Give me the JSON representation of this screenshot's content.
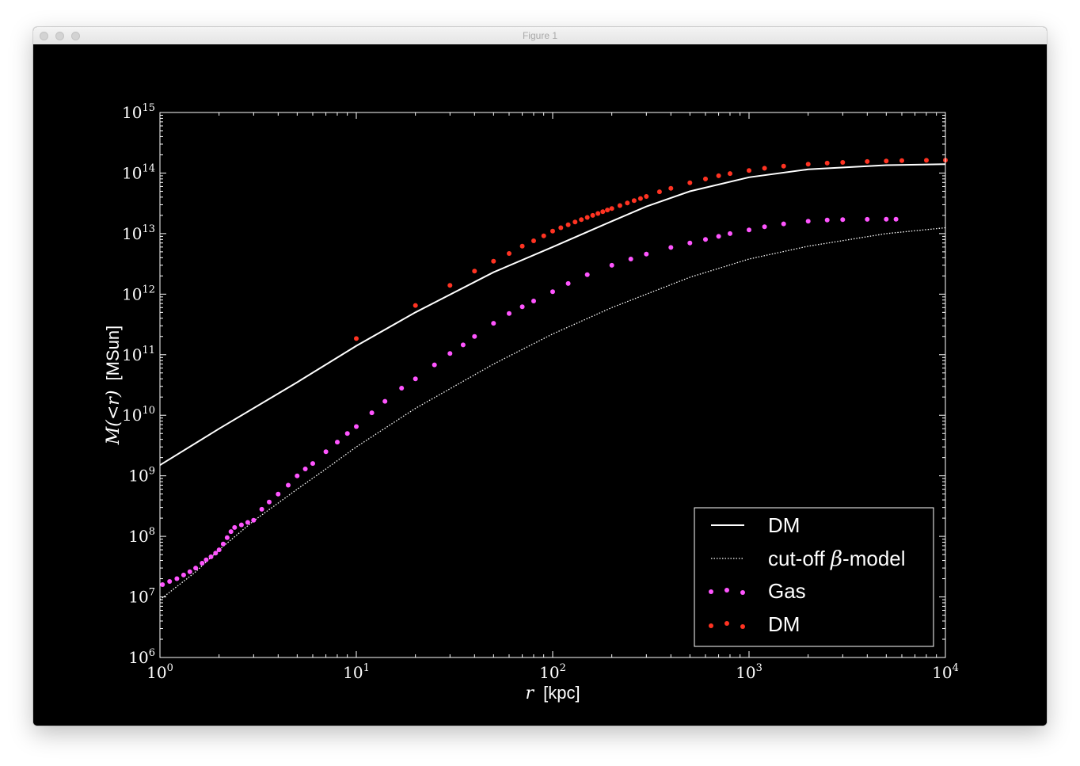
{
  "window": {
    "title": "Figure 1"
  },
  "chart_data": {
    "type": "line",
    "title": "",
    "xlabel_var": "r",
    "xlabel_unit": "[kpc]",
    "ylabel_var": "M(<r)",
    "ylabel_unit": "[MSun]",
    "xscale": "log",
    "yscale": "log",
    "xlim": [
      1,
      10000
    ],
    "ylim": [
      1000000,
      1000000000000000
    ],
    "x_tick_labels": [
      {
        "value": 1,
        "base": "10",
        "exp": "0"
      },
      {
        "value": 10,
        "base": "10",
        "exp": "1"
      },
      {
        "value": 100,
        "base": "10",
        "exp": "2"
      },
      {
        "value": 1000,
        "base": "10",
        "exp": "3"
      },
      {
        "value": 10000,
        "base": "10",
        "exp": "4"
      }
    ],
    "y_tick_labels": [
      {
        "value": 1000000.0,
        "base": "10",
        "exp": "6"
      },
      {
        "value": 10000000.0,
        "base": "10",
        "exp": "7"
      },
      {
        "value": 100000000.0,
        "base": "10",
        "exp": "8"
      },
      {
        "value": 1000000000.0,
        "base": "10",
        "exp": "9"
      },
      {
        "value": 10000000000.0,
        "base": "10",
        "exp": "10"
      },
      {
        "value": 100000000000.0,
        "base": "10",
        "exp": "11"
      },
      {
        "value": 1000000000000.0,
        "base": "10",
        "exp": "12"
      },
      {
        "value": 10000000000000.0,
        "base": "10",
        "exp": "13"
      },
      {
        "value": 100000000000000.0,
        "base": "10",
        "exp": "14"
      },
      {
        "value": 1000000000000000.0,
        "base": "10",
        "exp": "15"
      }
    ],
    "grid": false,
    "legend_position": "lower-right",
    "series": [
      {
        "name": "DM",
        "kind": "line",
        "style": "solid",
        "color": "#ffffff",
        "x": [
          1,
          2,
          5,
          10,
          20,
          50,
          100,
          200,
          300,
          500,
          1000,
          2000,
          5000,
          10000
        ],
        "y": [
          1500000000.0,
          6000000000.0,
          35000000000.0,
          140000000000.0,
          500000000000.0,
          2300000000000.0,
          6000000000000.0,
          16000000000000.0,
          28000000000000.0,
          50000000000000.0,
          85000000000000.0,
          115000000000000.0,
          135000000000000.0,
          140000000000000.0
        ]
      },
      {
        "name": "cut-off β-model",
        "name_prefix": "cut-off ",
        "name_symbol": "β",
        "name_suffix": "-model",
        "kind": "line",
        "style": "dotted",
        "color": "#ffffff",
        "x": [
          1,
          1.5,
          2,
          3,
          5,
          7,
          10,
          20,
          50,
          100,
          200,
          500,
          1000,
          2000,
          5000,
          10000
        ],
        "y": [
          9000000.0,
          25000000.0,
          60000000.0,
          180000000.0,
          600000000.0,
          1300000000.0,
          3000000000.0,
          13000000000.0,
          70000000000.0,
          220000000000.0,
          600000000000.0,
          1900000000000.0,
          3800000000000.0,
          6200000000000.0,
          10000000000000.0,
          12500000000000.0
        ]
      },
      {
        "name": "Gas",
        "kind": "scatter",
        "color": "#ff55ff",
        "x": [
          1.03,
          1.12,
          1.22,
          1.32,
          1.42,
          1.52,
          1.64,
          1.72,
          1.82,
          1.92,
          2.0,
          2.1,
          2.2,
          2.3,
          2.4,
          2.6,
          2.8,
          3.0,
          3.3,
          3.6,
          4.0,
          4.5,
          5.0,
          5.5,
          6.0,
          7.0,
          8.0,
          9.0,
          10,
          12,
          14,
          17,
          20,
          25,
          30,
          35,
          40,
          50,
          60,
          70,
          80,
          100,
          120,
          150,
          200,
          250,
          300,
          400,
          500,
          600,
          700,
          800,
          1000,
          1200,
          1500,
          2000,
          2500,
          3000,
          4000,
          5000,
          5600
        ],
        "y": [
          16000000.0,
          18000000.0,
          20000000.0,
          23000000.0,
          26000000.0,
          30000000.0,
          36000000.0,
          41000000.0,
          46000000.0,
          53000000.0,
          60000000.0,
          75000000.0,
          95000000.0,
          120000000.0,
          140000000.0,
          155000000.0,
          170000000.0,
          185000000.0,
          280000000.0,
          370000000.0,
          500000000.0,
          700000000.0,
          1000000000.0,
          1300000000.0,
          1600000000.0,
          2500000000.0,
          3600000000.0,
          5000000000.0,
          6500000000.0,
          11000000000.0,
          17000000000.0,
          28000000000.0,
          40000000000.0,
          68000000000.0,
          105000000000.0,
          145000000000.0,
          200000000000.0,
          330000000000.0,
          480000000000.0,
          620000000000.0,
          770000000000.0,
          1100000000000.0,
          1500000000000.0,
          2100000000000.0,
          3000000000000.0,
          3800000000000.0,
          4600000000000.0,
          5900000000000.0,
          7000000000000.0,
          8000000000000.0,
          9000000000000.0,
          10000000000000.0,
          11500000000000.0,
          13000000000000.0,
          14500000000000.0,
          16000000000000.0,
          16800000000000.0,
          17000000000000.0,
          17200000000000.0,
          17300000000000.0,
          17300000000000.0
        ]
      },
      {
        "name": "DM",
        "kind": "scatter",
        "color": "#ff3322",
        "x": [
          10,
          20,
          30,
          40,
          50,
          60,
          70,
          80,
          90,
          100,
          110,
          120,
          130,
          140,
          150,
          160,
          170,
          180,
          190,
          200,
          220,
          240,
          260,
          280,
          300,
          350,
          400,
          500,
          600,
          700,
          800,
          1000,
          1200,
          1500,
          2000,
          2500,
          3000,
          4000,
          5000,
          6000,
          8000,
          10000
        ],
        "y": [
          185000000000.0,
          650000000000.0,
          1400000000000.0,
          2400000000000.0,
          3500000000000.0,
          4700000000000.0,
          6200000000000.0,
          7600000000000.0,
          9200000000000.0,
          11000000000000.0,
          12500000000000.0,
          14000000000000.0,
          15500000000000.0,
          17000000000000.0,
          18500000000000.0,
          20000000000000.0,
          21500000000000.0,
          23000000000000.0,
          24500000000000.0,
          26000000000000.0,
          29000000000000.0,
          32000000000000.0,
          35000000000000.0,
          38000000000000.0,
          41000000000000.0,
          49000000000000.0,
          56000000000000.0,
          69000000000000.0,
          80000000000000.0,
          90000000000000.0,
          98000000000000.0,
          110000000000000.0,
          120000000000000.0,
          130000000000000.0,
          140000000000000.0,
          146000000000000.0,
          150000000000000.0,
          155000000000000.0,
          158000000000000.0,
          160000000000000.0,
          162000000000000.0,
          163000000000000.0
        ]
      }
    ]
  }
}
